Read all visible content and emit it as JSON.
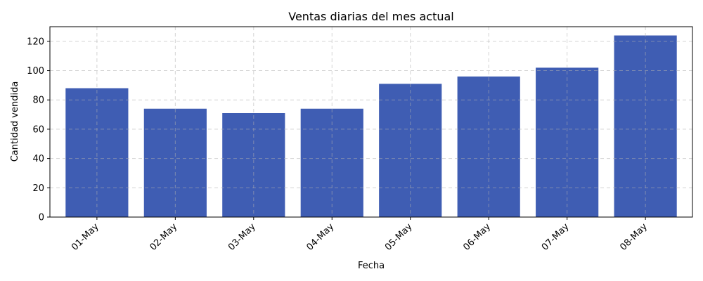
{
  "chart_data": {
    "type": "bar",
    "title": "Ventas diarias del mes actual",
    "xlabel": "Fecha",
    "ylabel": "Cantidad vendida",
    "categories": [
      "01-May",
      "02-May",
      "03-May",
      "04-May",
      "05-May",
      "06-May",
      "07-May",
      "08-May"
    ],
    "values": [
      88,
      74,
      71,
      74,
      91,
      96,
      102,
      124
    ],
    "ylim": [
      0,
      130
    ],
    "yticks": [
      0,
      20,
      40,
      60,
      80,
      100,
      120
    ],
    "grid": true,
    "bar_color": "#3f5db3"
  }
}
